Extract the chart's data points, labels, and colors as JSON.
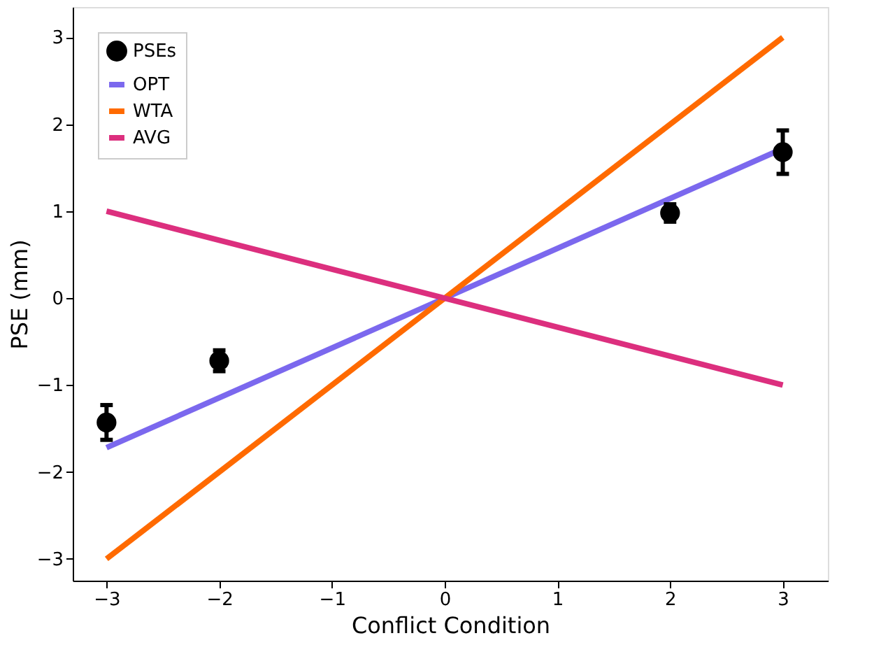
{
  "chart_data": {
    "type": "scatter",
    "xlabel": "Conflict Condition",
    "ylabel": "PSE (mm)",
    "xlim": [
      -3.3,
      3.4
    ],
    "ylim": [
      -3.25,
      3.35
    ],
    "xticks": [
      -3,
      -2,
      -1,
      0,
      1,
      2,
      3
    ],
    "yticks": [
      -3,
      -2,
      -1,
      0,
      1,
      2,
      3
    ],
    "legend": "top left",
    "grid": false,
    "series": [
      {
        "name": "PSEs",
        "marker": "circle",
        "color": "#000000",
        "x": [
          -3,
          -2,
          2,
          3
        ],
        "values": [
          -1.43,
          -0.72,
          0.98,
          1.68
        ],
        "errors": [
          0.2,
          0.12,
          0.1,
          0.25
        ]
      },
      {
        "name": "OPT",
        "type": "line",
        "color": "#7b68ee",
        "x": [
          -3,
          3
        ],
        "values": [
          -1.72,
          1.72
        ]
      },
      {
        "name": "WTA",
        "type": "line",
        "color": "#ff6a00",
        "x": [
          -3,
          3
        ],
        "values": [
          -3,
          3
        ]
      },
      {
        "name": "AVG",
        "type": "line",
        "color": "#dc2f7e",
        "x": [
          -3,
          3
        ],
        "values": [
          1,
          -1
        ]
      }
    ]
  }
}
